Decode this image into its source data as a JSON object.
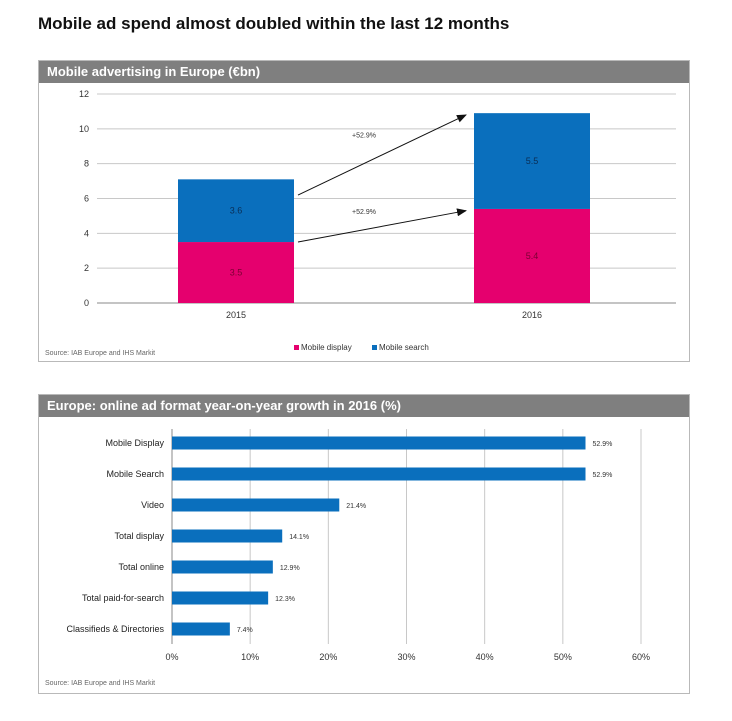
{
  "page": {
    "title": "Mobile ad spend almost doubled within the last 12 months"
  },
  "panels": [
    {
      "title": "Mobile advertising in Europe (€bn)",
      "source": "Source: IAB Europe and IHS Markit"
    },
    {
      "title": "Europe: online ad format year-on-year growth in 2016 (%)",
      "source": "Source: IAB Europe and IHS Markit"
    }
  ],
  "colors": {
    "display": "#e5006e",
    "search": "#0a6fbd",
    "header": "#7f7f7f",
    "bar": "#0a6fbd"
  },
  "chart_data": [
    {
      "type": "bar",
      "stacked": true,
      "title": "Mobile advertising in Europe (€bn)",
      "categories": [
        "2015",
        "2016"
      ],
      "series": [
        {
          "name": "Mobile display",
          "values": [
            3.5,
            5.4
          ]
        },
        {
          "name": "Mobile search",
          "values": [
            3.6,
            5.5
          ]
        }
      ],
      "data_labels": [
        [
          "3.5",
          "5.4"
        ],
        [
          "3.6",
          "5.5"
        ]
      ],
      "ylim": [
        0,
        12
      ],
      "yticks": [
        "0",
        "2",
        "4",
        "6",
        "8",
        "10",
        "12"
      ],
      "grid": true,
      "legend": "bottom",
      "annotations": [
        "+52.9%",
        "+52.9%"
      ]
    },
    {
      "type": "bar",
      "orientation": "horizontal",
      "title": "Europe: online ad format year-on-year growth in 2016 (%)",
      "categories": [
        "Mobile Display",
        "Mobile Search",
        "Video",
        "Total display",
        "Total online",
        "Total paid-for-search",
        "Classifieds & Directories"
      ],
      "values": [
        52.9,
        52.9,
        21.4,
        14.1,
        12.9,
        12.3,
        7.4
      ],
      "value_labels": [
        "52.9%",
        "52.9%",
        "21.4%",
        "14.1%",
        "12.9%",
        "12.3%",
        "7.4%"
      ],
      "xlim": [
        0,
        60
      ],
      "xticks": [
        "0%",
        "10%",
        "20%",
        "30%",
        "40%",
        "50%",
        "60%"
      ],
      "grid": true
    }
  ]
}
